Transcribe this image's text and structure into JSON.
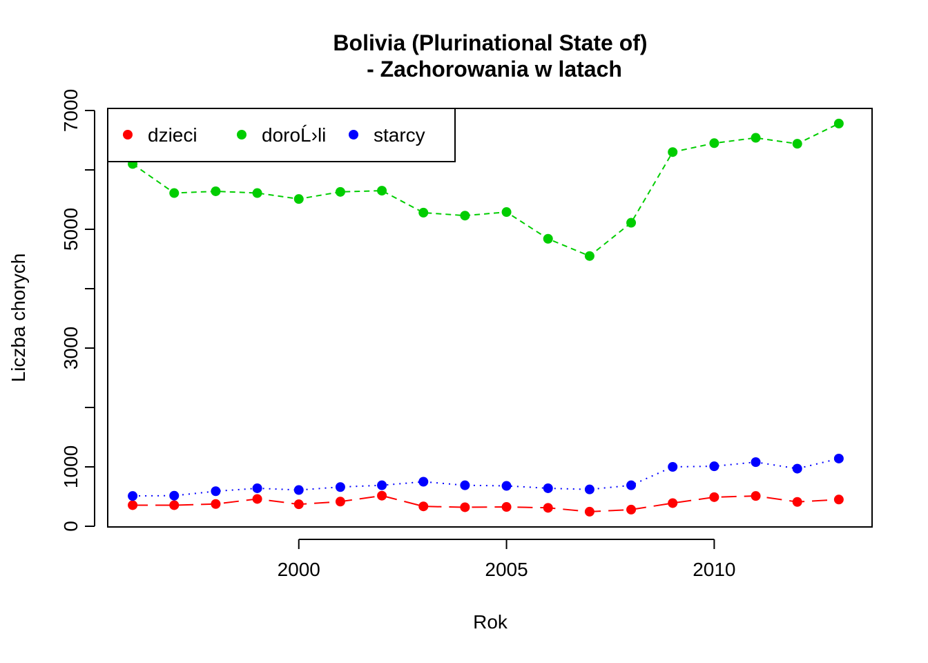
{
  "chart_data": {
    "type": "line",
    "title": [
      "Bolivia (Plurinational State of)",
      "- Zachorowania w latach"
    ],
    "xlabel": "Rok",
    "ylabel": "Liczba chorych",
    "xlim": [
      1995.4,
      2013.8
    ],
    "ylim": [
      0,
      7000
    ],
    "xticks": [
      2000,
      2005,
      2010
    ],
    "xtick_labels": [
      "2000",
      "2005",
      "2010"
    ],
    "yticks": [
      0,
      1000,
      2000,
      3000,
      4000,
      5000,
      6000,
      7000
    ],
    "ytick_labels": [
      "0",
      "1000",
      "",
      "3000",
      "",
      "5000",
      "",
      "7000"
    ],
    "legend": {
      "position": "top-left",
      "horizontal": true
    },
    "x": [
      1996,
      1997,
      1998,
      1999,
      2000,
      2001,
      2002,
      2003,
      2004,
      2005,
      2006,
      2007,
      2008,
      2009,
      2010,
      2011,
      2012,
      2013
    ],
    "series": [
      {
        "name": "dzieci",
        "color": "#ff0000",
        "line_style": "longdash",
        "values": [
          355,
          355,
          375,
          460,
          370,
          415,
          515,
          335,
          320,
          325,
          310,
          245,
          280,
          390,
          490,
          510,
          410,
          450
        ]
      },
      {
        "name": "doroĹ›li",
        "color": "#00cd00",
        "line_style": "dashed",
        "values": [
          6100,
          5610,
          5640,
          5610,
          5510,
          5630,
          5650,
          5280,
          5230,
          5290,
          4840,
          4550,
          5110,
          6300,
          6450,
          6540,
          6440,
          6780
        ]
      },
      {
        "name": "starcy",
        "color": "#0000ff",
        "line_style": "dotted",
        "values": [
          510,
          515,
          590,
          640,
          610,
          660,
          690,
          750,
          690,
          680,
          640,
          620,
          690,
          1000,
          1010,
          1080,
          970,
          1140
        ]
      }
    ]
  }
}
